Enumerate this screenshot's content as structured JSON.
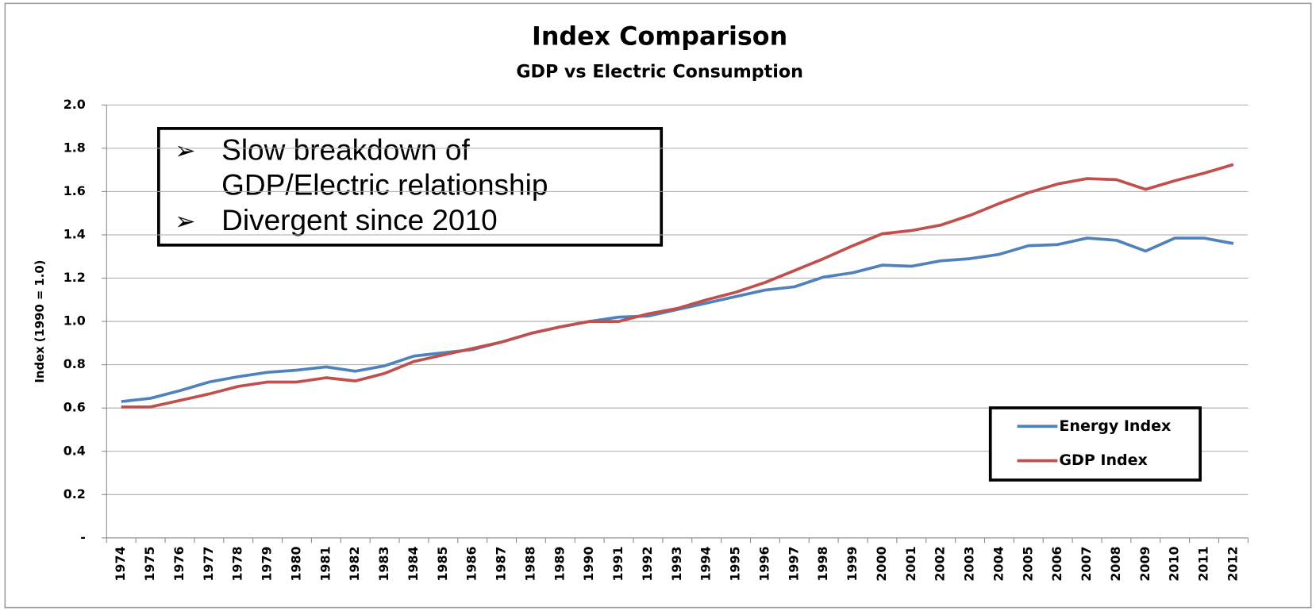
{
  "chart_data": {
    "type": "line",
    "title": "Index Comparison",
    "subtitle": "GDP vs Electric Consumption",
    "y_label": "Index (1990 = 1.0)",
    "categories": [
      "1974",
      "1975",
      "1976",
      "1977",
      "1978",
      "1979",
      "1980",
      "1981",
      "1982",
      "1983",
      "1984",
      "1985",
      "1986",
      "1987",
      "1988",
      "1989",
      "1990",
      "1991",
      "1992",
      "1993",
      "1994",
      "1995",
      "1996",
      "1997",
      "1998",
      "1999",
      "2000",
      "2001",
      "2002",
      "2003",
      "2004",
      "2005",
      "2006",
      "2007",
      "2008",
      "2009",
      "2010",
      "2011",
      "2012"
    ],
    "series": [
      {
        "name": "Energy Index",
        "color": "#4f81bd",
        "values": [
          0.63,
          0.645,
          0.68,
          0.72,
          0.745,
          0.765,
          0.775,
          0.79,
          0.77,
          0.795,
          0.84,
          0.855,
          0.87,
          0.905,
          0.945,
          0.975,
          1.0,
          1.02,
          1.025,
          1.055,
          1.085,
          1.115,
          1.145,
          1.16,
          1.205,
          1.225,
          1.26,
          1.255,
          1.28,
          1.29,
          1.31,
          1.35,
          1.355,
          1.385,
          1.375,
          1.325,
          1.385,
          1.385,
          1.36
        ]
      },
      {
        "name": "GDP Index",
        "color": "#c0504d",
        "values": [
          0.605,
          0.605,
          0.635,
          0.665,
          0.7,
          0.72,
          0.72,
          0.74,
          0.725,
          0.76,
          0.815,
          0.845,
          0.875,
          0.905,
          0.945,
          0.975,
          1.0,
          1.0,
          1.035,
          1.06,
          1.1,
          1.135,
          1.18,
          1.235,
          1.29,
          1.35,
          1.405,
          1.42,
          1.445,
          1.49,
          1.545,
          1.595,
          1.635,
          1.66,
          1.655,
          1.61,
          1.65,
          1.685,
          1.725
        ]
      }
    ],
    "ylim": [
      0,
      2
    ],
    "yticks": [
      {
        "value": 0,
        "label": "-"
      },
      0.2,
      0.4,
      0.6,
      0.8,
      {
        "value": 1,
        "label": "1.0"
      },
      1.2,
      1.4,
      1.6,
      1.8,
      {
        "value": 2,
        "label": "2.0"
      }
    ],
    "grid": true,
    "legend": "lower right",
    "annotations": [
      {
        "lines": [
          "Slow breakdown of",
          "GDP/Electric relationship"
        ]
      },
      {
        "lines": [
          "Divergent since 2010"
        ]
      }
    ]
  }
}
